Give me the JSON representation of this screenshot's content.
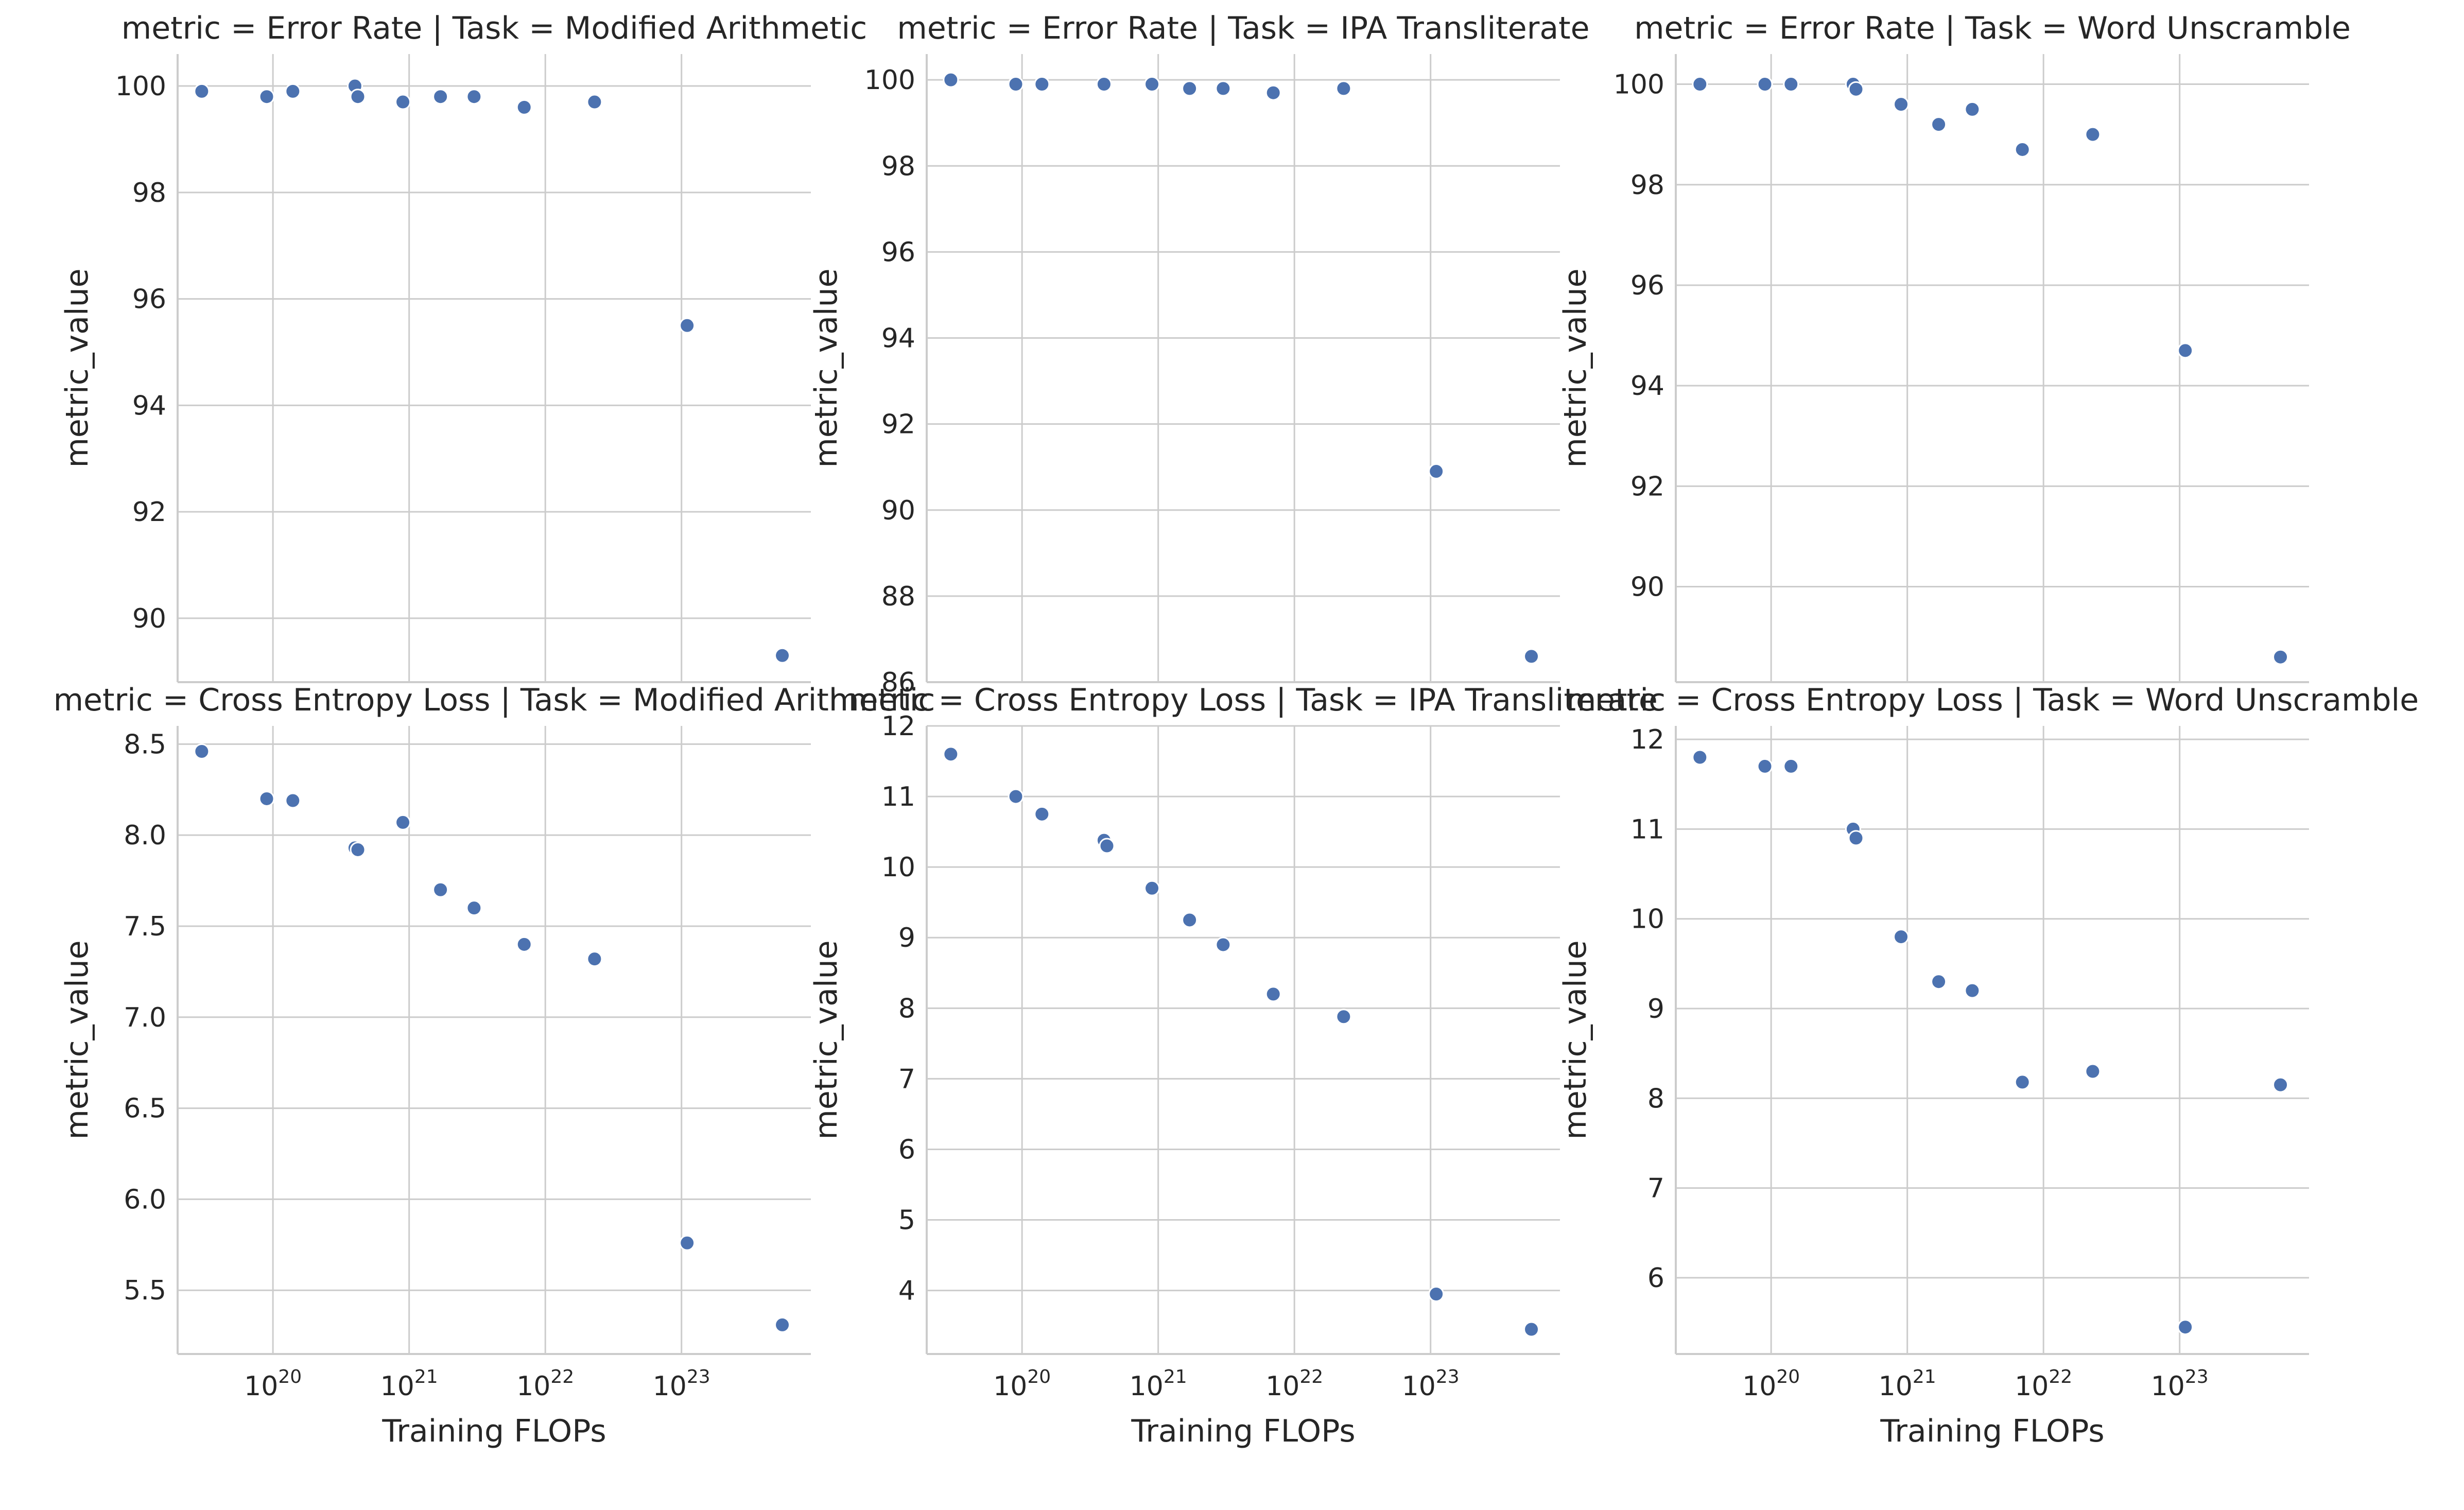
{
  "chart_data": [
    {
      "type": "scatter",
      "title": "metric = Error Rate | Task = Modified Arithmetic",
      "ylabel": "metric_value",
      "xlabel": "",
      "x_scale": "log",
      "ylim": [
        88.8,
        100.6
      ],
      "yticks": [
        90,
        92,
        94,
        96,
        98,
        100
      ],
      "xlim_log10": [
        19.3,
        23.95
      ],
      "x_ticks_log10": [
        20,
        21,
        22,
        23
      ],
      "show_x_tick_labels": false,
      "grid": true,
      "points": [
        {
          "x": 3e+19,
          "y": 99.9
        },
        {
          "x": 9e+19,
          "y": 99.8
        },
        {
          "x": 1.4e+20,
          "y": 99.9
        },
        {
          "x": 4e+20,
          "y": 100.0
        },
        {
          "x": 4.2e+20,
          "y": 99.8
        },
        {
          "x": 9e+20,
          "y": 99.7
        },
        {
          "x": 1.7e+21,
          "y": 99.8
        },
        {
          "x": 3e+21,
          "y": 99.8
        },
        {
          "x": 7e+21,
          "y": 99.6
        },
        {
          "x": 2.3e+22,
          "y": 99.7
        },
        {
          "x": 1.1e+23,
          "y": 95.5
        },
        {
          "x": 5.5e+23,
          "y": 89.3
        }
      ]
    },
    {
      "type": "scatter",
      "title": "metric = Error Rate | Task = IPA Transliterate",
      "ylabel": "metric_value",
      "xlabel": "",
      "x_scale": "log",
      "ylim": [
        86.0,
        100.6
      ],
      "yticks": [
        86,
        88,
        90,
        92,
        94,
        96,
        98,
        100
      ],
      "xlim_log10": [
        19.3,
        23.95
      ],
      "x_ticks_log10": [
        20,
        21,
        22,
        23
      ],
      "show_x_tick_labels": false,
      "grid": true,
      "points": [
        {
          "x": 3e+19,
          "y": 100.0
        },
        {
          "x": 9e+19,
          "y": 99.9
        },
        {
          "x": 1.4e+20,
          "y": 99.9
        },
        {
          "x": 4e+20,
          "y": 99.9
        },
        {
          "x": 9e+20,
          "y": 99.9
        },
        {
          "x": 1.7e+21,
          "y": 99.8
        },
        {
          "x": 3e+21,
          "y": 99.8
        },
        {
          "x": 7e+21,
          "y": 99.7
        },
        {
          "x": 2.3e+22,
          "y": 99.8
        },
        {
          "x": 1.1e+23,
          "y": 90.9
        },
        {
          "x": 5.5e+23,
          "y": 86.6
        }
      ]
    },
    {
      "type": "scatter",
      "title": "metric = Error Rate | Task = Word Unscramble",
      "ylabel": "metric_value",
      "xlabel": "",
      "x_scale": "log",
      "ylim": [
        88.1,
        100.6
      ],
      "yticks": [
        90,
        92,
        94,
        96,
        98,
        100
      ],
      "xlim_log10": [
        19.3,
        23.95
      ],
      "x_ticks_log10": [
        20,
        21,
        22,
        23
      ],
      "show_x_tick_labels": false,
      "grid": true,
      "points": [
        {
          "x": 3e+19,
          "y": 100.0
        },
        {
          "x": 9e+19,
          "y": 100.0
        },
        {
          "x": 1.4e+20,
          "y": 100.0
        },
        {
          "x": 4e+20,
          "y": 100.0
        },
        {
          "x": 4.2e+20,
          "y": 99.9
        },
        {
          "x": 9e+20,
          "y": 99.6
        },
        {
          "x": 1.7e+21,
          "y": 99.2
        },
        {
          "x": 3e+21,
          "y": 99.5
        },
        {
          "x": 7e+21,
          "y": 98.7
        },
        {
          "x": 2.3e+22,
          "y": 99.0
        },
        {
          "x": 1.1e+23,
          "y": 94.7
        },
        {
          "x": 5.5e+23,
          "y": 88.6
        }
      ]
    },
    {
      "type": "scatter",
      "title": "metric = Cross Entropy Loss | Task = Modified Arithmetic",
      "ylabel": "metric_value",
      "xlabel": "Training FLOPs",
      "x_scale": "log",
      "ylim": [
        5.15,
        8.6
      ],
      "yticks": [
        5.5,
        6.0,
        6.5,
        7.0,
        7.5,
        8.0,
        8.5
      ],
      "xlim_log10": [
        19.3,
        23.95
      ],
      "x_ticks_log10": [
        20,
        21,
        22,
        23
      ],
      "show_x_tick_labels": true,
      "grid": true,
      "points": [
        {
          "x": 3e+19,
          "y": 8.46
        },
        {
          "x": 9e+19,
          "y": 8.2
        },
        {
          "x": 1.4e+20,
          "y": 8.19
        },
        {
          "x": 4e+20,
          "y": 7.93
        },
        {
          "x": 4.2e+20,
          "y": 7.92
        },
        {
          "x": 9e+20,
          "y": 8.07
        },
        {
          "x": 1.7e+21,
          "y": 7.7
        },
        {
          "x": 3e+21,
          "y": 7.6
        },
        {
          "x": 7e+21,
          "y": 7.4
        },
        {
          "x": 2.3e+22,
          "y": 7.32
        },
        {
          "x": 1.1e+23,
          "y": 5.76
        },
        {
          "x": 5.5e+23,
          "y": 5.31
        }
      ]
    },
    {
      "type": "scatter",
      "title": "metric = Cross Entropy Loss | Task = IPA Transliterate",
      "ylabel": "metric_value",
      "xlabel": "Training FLOPs",
      "x_scale": "log",
      "ylim": [
        3.1,
        12.0
      ],
      "yticks": [
        4,
        5,
        6,
        7,
        8,
        9,
        10,
        11,
        12
      ],
      "xlim_log10": [
        19.3,
        23.95
      ],
      "x_ticks_log10": [
        20,
        21,
        22,
        23
      ],
      "show_x_tick_labels": true,
      "grid": true,
      "points": [
        {
          "x": 3e+19,
          "y": 11.6
        },
        {
          "x": 9e+19,
          "y": 11.0
        },
        {
          "x": 1.4e+20,
          "y": 10.75
        },
        {
          "x": 4e+20,
          "y": 10.38
        },
        {
          "x": 4.2e+20,
          "y": 10.3
        },
        {
          "x": 9e+20,
          "y": 9.7
        },
        {
          "x": 1.7e+21,
          "y": 9.25
        },
        {
          "x": 3e+21,
          "y": 8.9
        },
        {
          "x": 7e+21,
          "y": 8.2
        },
        {
          "x": 2.3e+22,
          "y": 7.88
        },
        {
          "x": 1.1e+23,
          "y": 3.95
        },
        {
          "x": 5.5e+23,
          "y": 3.45
        }
      ]
    },
    {
      "type": "scatter",
      "title": "metric = Cross Entropy Loss | Task = Word Unscramble",
      "ylabel": "metric_value",
      "xlabel": "Training FLOPs",
      "x_scale": "log",
      "ylim": [
        5.15,
        12.15
      ],
      "yticks": [
        6,
        7,
        8,
        9,
        10,
        11,
        12
      ],
      "xlim_log10": [
        19.3,
        23.95
      ],
      "x_ticks_log10": [
        20,
        21,
        22,
        23
      ],
      "show_x_tick_labels": true,
      "grid": true,
      "points": [
        {
          "x": 3e+19,
          "y": 11.8
        },
        {
          "x": 9e+19,
          "y": 11.7
        },
        {
          "x": 1.4e+20,
          "y": 11.7
        },
        {
          "x": 4e+20,
          "y": 11.0
        },
        {
          "x": 4.2e+20,
          "y": 10.9
        },
        {
          "x": 9e+20,
          "y": 9.8
        },
        {
          "x": 1.7e+21,
          "y": 9.3
        },
        {
          "x": 3e+21,
          "y": 9.2
        },
        {
          "x": 7e+21,
          "y": 8.18
        },
        {
          "x": 2.3e+22,
          "y": 8.3
        },
        {
          "x": 1.1e+23,
          "y": 5.45
        },
        {
          "x": 5.5e+23,
          "y": 8.15
        }
      ]
    }
  ]
}
